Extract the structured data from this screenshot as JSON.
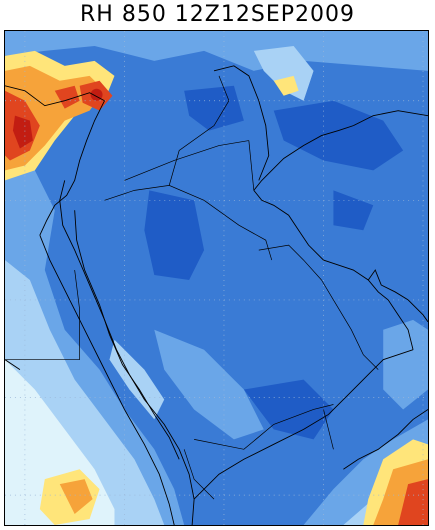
{
  "map": {
    "title": "RH 850 12Z12SEP2009",
    "variable": "relative humidity",
    "level": "850",
    "valid_time": "12Z12SEP2009",
    "palette": {
      "very_dry": "#1f5cc6",
      "dry": "#3a7bd5",
      "moderate": "#6aa6e8",
      "humid": "#a9d2f5",
      "very_humid": "#dff3fb",
      "near_saturated_low": "#ffe57a",
      "near_saturated_mid": "#f6a33a",
      "saturated": "#e0451f",
      "saturated_core": "#c21d12"
    },
    "features": [
      "coastline",
      "country-borders",
      "lat-lon-grid"
    ]
  }
}
